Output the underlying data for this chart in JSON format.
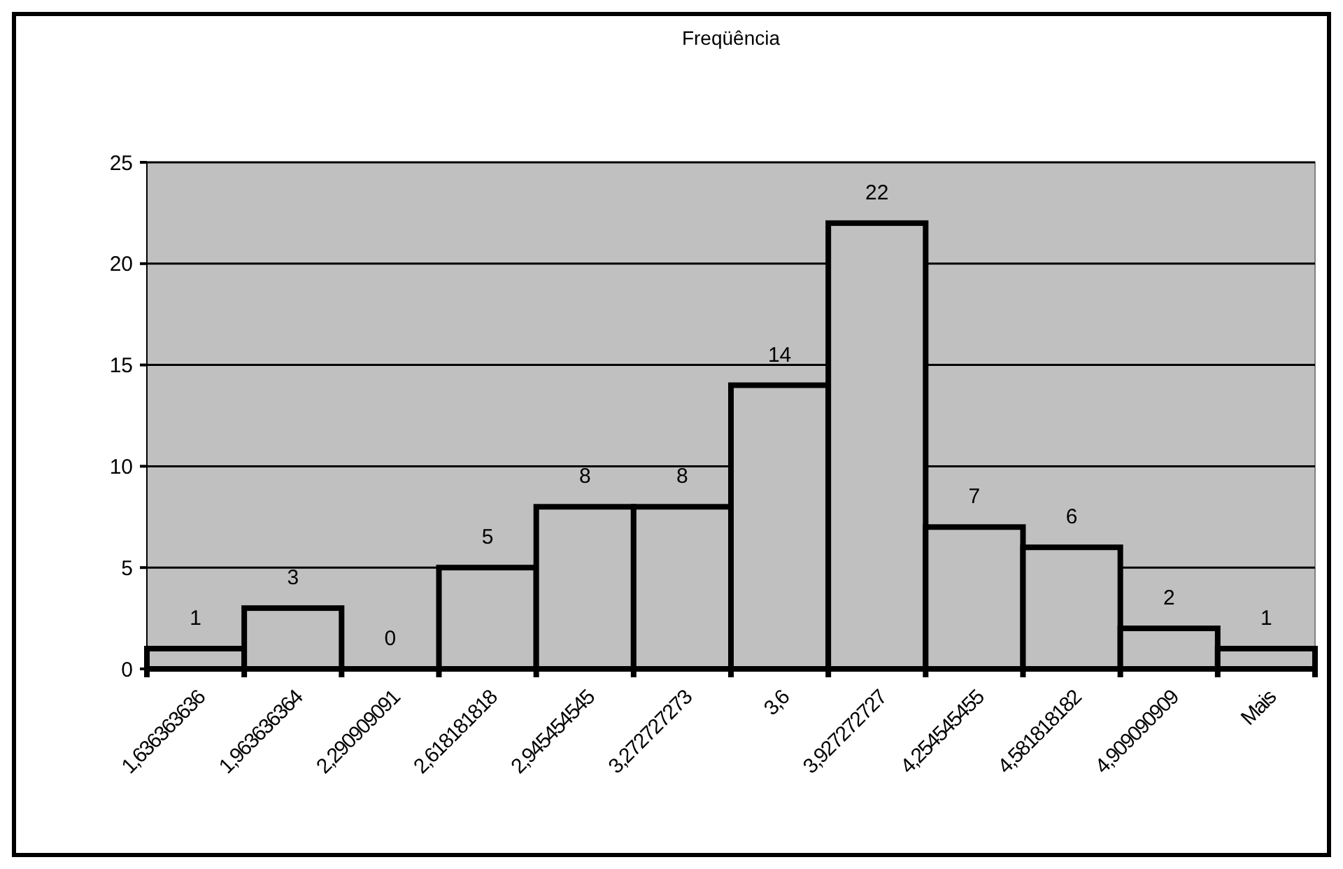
{
  "chart_data": {
    "type": "bar",
    "title": "Freqüência",
    "categories": [
      "1,636363636",
      "1,963636364",
      "2,290909091",
      "2,618181818",
      "2,945454545",
      "3,272727273",
      "3,6",
      "3,927272727",
      "4,254545455",
      "4,581818182",
      "4,909090909",
      "Mais"
    ],
    "values": [
      1,
      3,
      0,
      5,
      8,
      8,
      14,
      22,
      7,
      6,
      2,
      1
    ],
    "color": "#c0c0c0",
    "ylim": [
      0,
      25
    ],
    "yticks": [
      0,
      5,
      10,
      15,
      20,
      25
    ],
    "grid": "y",
    "data_labels": true
  }
}
